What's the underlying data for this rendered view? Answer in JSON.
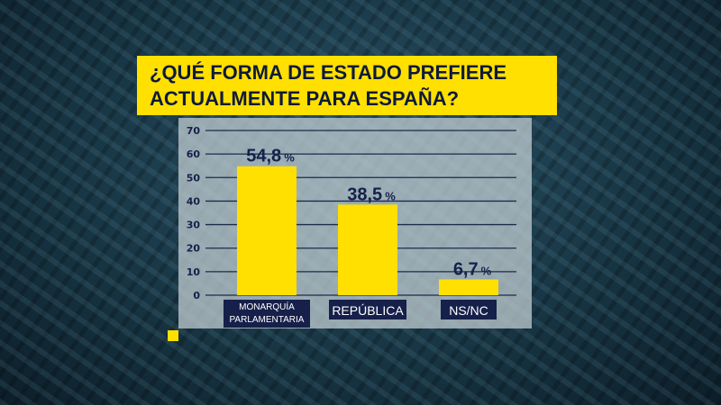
{
  "title_lines": [
    "¿QUÉ FORMA DE ESTADO PREFIERE",
    "ACTUALMENTE PARA ESPAÑA?"
  ],
  "colors": {
    "bar": "#ffe000",
    "text": "#16204a",
    "label_bg": "#16204a"
  },
  "chart_data": {
    "type": "bar",
    "title": "¿QUÉ FORMA DE ESTADO PREFIERE ACTUALMENTE PARA ESPAÑA?",
    "categories": [
      [
        "MONARQUÍA",
        "PARLAMENTARIA"
      ],
      [
        "REPÚBLICA"
      ],
      [
        "NS/NC"
      ]
    ],
    "values": [
      54.8,
      38.5,
      6.7
    ],
    "value_labels": [
      "54,8",
      "38,5",
      "6,7"
    ],
    "unit": "%",
    "yticks": [
      0,
      10,
      20,
      30,
      40,
      50,
      60,
      70
    ],
    "ylim": [
      0,
      70
    ],
    "grid": true,
    "xlabel": "",
    "ylabel": ""
  }
}
